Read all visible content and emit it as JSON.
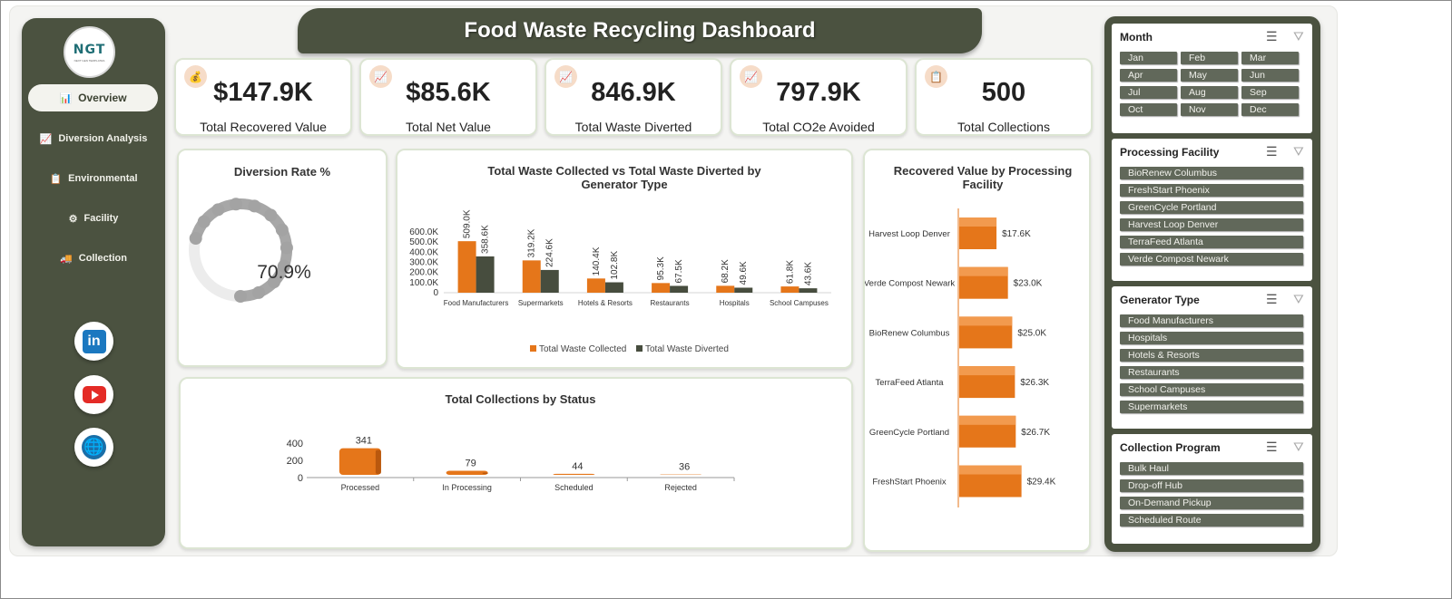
{
  "title": "Food Waste Recycling Dashboard",
  "logo": {
    "text": "NGT",
    "subtext": "NEXT GEN TEMPLATES"
  },
  "nav": [
    {
      "label": "Overview",
      "icon": "📊"
    },
    {
      "label": "Diversion Analysis",
      "icon": "📈"
    },
    {
      "label": "Environmental",
      "icon": "📋"
    },
    {
      "label": "Facility",
      "icon": "⚙"
    },
    {
      "label": "Collection",
      "icon": "🚚"
    }
  ],
  "social": {
    "linkedin": "in",
    "youtube": "youtube-icon",
    "web": "globe-icon"
  },
  "kpis": [
    {
      "value": "$147.9K",
      "label": "Total Recovered Value",
      "icon": "💰"
    },
    {
      "value": "$85.6K",
      "label": "Total Net Value",
      "icon": "📈"
    },
    {
      "value": "846.9K",
      "label": "Total Waste Diverted",
      "icon": "📈"
    },
    {
      "value": "797.9K",
      "label": "Total CO2e Avoided",
      "icon": "📈"
    },
    {
      "value": "500",
      "label": "Total Collections",
      "icon": "📋"
    }
  ],
  "diversion": {
    "title": "Diversion Rate %",
    "value_label": "70.9%",
    "value": 70.9
  },
  "chart_data": [
    {
      "type": "bar",
      "title": "Total Waste Collected vs Total Waste Diverted by Generator Type",
      "categories": [
        "Food Manufacturers",
        "Supermarkets",
        "Hotels & Resorts",
        "Restaurants",
        "Hospitals",
        "School Campuses"
      ],
      "series": [
        {
          "name": "Total Waste Collected",
          "values": [
            509.0,
            319.2,
            140.4,
            95.3,
            68.2,
            61.8
          ],
          "labels": [
            "509.0K",
            "319.2K",
            "140.4K",
            "95.3K",
            "68.2K",
            "61.8K"
          ],
          "color": "#e5761a"
        },
        {
          "name": "Total Waste Diverted",
          "values": [
            358.6,
            224.6,
            102.8,
            67.5,
            49.6,
            43.6
          ],
          "labels": [
            "358.6K",
            "224.6K",
            "102.8K",
            "67.5K",
            "49.6K",
            "43.6K"
          ],
          "color": "#474d3e"
        }
      ],
      "yticks": [
        "0",
        "100.0K",
        "200.0K",
        "300.0K",
        "400.0K",
        "500.0K",
        "600.0K"
      ],
      "ylim": [
        0,
        600
      ],
      "legend": "bottom"
    },
    {
      "type": "bar",
      "title": "Total Collections by Status",
      "categories": [
        "Processed",
        "In Processing",
        "Scheduled",
        "Rejected"
      ],
      "values": [
        341,
        79,
        44,
        36
      ],
      "yticks": [
        "0",
        "200",
        "400"
      ],
      "ylim": [
        0,
        400
      ],
      "color": "#e5761a"
    },
    {
      "type": "bar",
      "orientation": "horizontal",
      "title": "Recovered Value by Processing Facility",
      "categories": [
        "Harvest Loop Denver",
        "Verde Compost Newark",
        "BioRenew Columbus",
        "TerraFeed Atlanta",
        "GreenCycle Portland",
        "FreshStart Phoenix"
      ],
      "values": [
        17.6,
        23.0,
        25.0,
        26.3,
        26.7,
        29.4
      ],
      "labels": [
        "$17.6K",
        "$23.0K",
        "$25.0K",
        "$26.3K",
        "$26.7K",
        "$29.4K"
      ],
      "color": "#e5761a"
    }
  ],
  "slicers": [
    {
      "title": "Month",
      "items": [
        "Jan",
        "Feb",
        "Mar",
        "Apr",
        "May",
        "Jun",
        "Jul",
        "Aug",
        "Sep",
        "Oct",
        "Nov",
        "Dec"
      ]
    },
    {
      "title": "Processing Facility",
      "items": [
        "BioRenew Columbus",
        "FreshStart Phoenix",
        "GreenCycle Portland",
        "Harvest Loop Denver",
        "TerraFeed Atlanta",
        "Verde Compost Newark"
      ]
    },
    {
      "title": "Generator Type",
      "items": [
        "Food Manufacturers",
        "Hospitals",
        "Hotels & Resorts",
        "Restaurants",
        "School Campuses",
        "Supermarkets"
      ]
    },
    {
      "title": "Collection Program",
      "items": [
        "Bulk Haul",
        "Drop-off Hub",
        "On-Demand Pickup",
        "Scheduled Route"
      ]
    }
  ]
}
